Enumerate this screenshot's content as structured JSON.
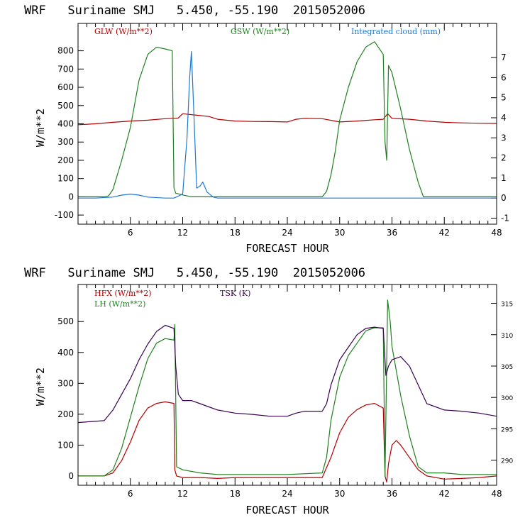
{
  "chart_data": [
    {
      "type": "line",
      "title": "WRF   Suriname SMJ   5.450, -55.190  2015052006",
      "xlabel": "FORECAST HOUR",
      "ylabel": "W/m**2",
      "xlim": [
        0,
        48
      ],
      "xticks": [
        6,
        12,
        18,
        24,
        30,
        36,
        42,
        48
      ],
      "ylim": [
        -150,
        950
      ],
      "yticks": [
        -100,
        0,
        100,
        200,
        300,
        400,
        500,
        600,
        700,
        800
      ],
      "y2lim": [
        -1.3,
        8.7
      ],
      "y2ticks": [
        -1,
        0,
        1,
        2,
        3,
        4,
        5,
        6,
        7
      ],
      "series": [
        {
          "name": "GLW (W/m**2)",
          "axis": "left",
          "color": "#b00000",
          "x": [
            0,
            2,
            4,
            6,
            8,
            10,
            11.5,
            12,
            14,
            15,
            16,
            18,
            20,
            22,
            24,
            25,
            26,
            28,
            30,
            32,
            34,
            35,
            35.5,
            36,
            38,
            40,
            42,
            44,
            46,
            48
          ],
          "y": [
            395,
            400,
            408,
            415,
            420,
            428,
            432,
            455,
            445,
            440,
            425,
            415,
            413,
            412,
            410,
            425,
            430,
            428,
            410,
            415,
            422,
            425,
            455,
            430,
            425,
            415,
            408,
            405,
            403,
            402
          ]
        },
        {
          "name": "GSW (W/m**2)",
          "axis": "left",
          "color": "#208020",
          "x": [
            0,
            3,
            3.5,
            4,
            5,
            6,
            7,
            8,
            9,
            10,
            10.8,
            11,
            11.2,
            12,
            12.5,
            13,
            14,
            15,
            16,
            17,
            20,
            24,
            28,
            28.5,
            29,
            29.5,
            30,
            31,
            32,
            33,
            34,
            35,
            35.2,
            35.4,
            35.6,
            36,
            37,
            38,
            39,
            39.6,
            40,
            44,
            48
          ],
          "y": [
            0,
            0,
            5,
            40,
            200,
            380,
            640,
            780,
            820,
            810,
            800,
            50,
            20,
            10,
            5,
            0,
            0,
            0,
            0,
            0,
            0,
            0,
            0,
            30,
            120,
            250,
            420,
            600,
            740,
            820,
            850,
            780,
            300,
            200,
            720,
            680,
            480,
            260,
            80,
            0,
            0,
            0,
            0
          ]
        },
        {
          "name": "Integrated cloud (mm)",
          "axis": "right",
          "color": "#1f78d1",
          "x": [
            0,
            2,
            4,
            5,
            6,
            7,
            8,
            10,
            11,
            12,
            12.5,
            12.8,
            13,
            13.3,
            13.6,
            14,
            14.3,
            14.8,
            15.5,
            16,
            20,
            24,
            30,
            36,
            42,
            48
          ],
          "y": [
            0,
            0,
            0.05,
            0.15,
            0.2,
            0.15,
            0.05,
            0,
            0,
            0.2,
            3.0,
            6.0,
            7.3,
            4.0,
            0.5,
            0.6,
            0.8,
            0.3,
            0.05,
            0,
            0,
            0,
            0,
            0,
            0,
            0
          ]
        }
      ]
    },
    {
      "type": "line",
      "title": "WRF   Suriname SMJ   5.450, -55.190  2015052006",
      "xlabel": "FORECAST HOUR",
      "ylabel": "W/m**2",
      "xlim": [
        0,
        48
      ],
      "xticks": [
        6,
        12,
        18,
        24,
        30,
        36,
        42,
        48
      ],
      "ylim": [
        -30,
        620
      ],
      "yticks": [
        0,
        100,
        200,
        300,
        400,
        500
      ],
      "y2lim": [
        286,
        318
      ],
      "y2ticks": [
        290,
        295,
        300,
        305,
        310,
        315
      ],
      "series": [
        {
          "name": "HFX (W/m**2)",
          "axis": "left",
          "color": "#b00000",
          "x": [
            0,
            3,
            4,
            5,
            6,
            7,
            8,
            9,
            10,
            11,
            11.1,
            11.3,
            12,
            14,
            16,
            18,
            20,
            24,
            28,
            29,
            30,
            31,
            32,
            33,
            34,
            35,
            35.2,
            35.4,
            35.6,
            36,
            36.5,
            37,
            38,
            39,
            40,
            42,
            44,
            46,
            48
          ],
          "y": [
            0,
            0,
            10,
            50,
            110,
            180,
            220,
            235,
            240,
            235,
            20,
            0,
            -5,
            -5,
            -8,
            -5,
            -5,
            -5,
            -5,
            60,
            140,
            190,
            215,
            230,
            235,
            220,
            0,
            -20,
            40,
            100,
            115,
            100,
            60,
            20,
            0,
            -10,
            -8,
            -5,
            0
          ]
        },
        {
          "name": "LH (W/m**2)",
          "axis": "left",
          "color": "#208020",
          "x": [
            0,
            3,
            4,
            5,
            6,
            7,
            8,
            9,
            10,
            11,
            11.1,
            11.3,
            12,
            14,
            16,
            18,
            20,
            24,
            28,
            28.5,
            29,
            30,
            31,
            32,
            33,
            34,
            35,
            35.2,
            35.5,
            35.8,
            36,
            37,
            38,
            39,
            40,
            42,
            44,
            46,
            48
          ],
          "y": [
            0,
            0,
            20,
            90,
            190,
            290,
            380,
            430,
            445,
            440,
            490,
            30,
            20,
            10,
            5,
            5,
            5,
            5,
            10,
            60,
            180,
            320,
            390,
            430,
            470,
            480,
            480,
            0,
            570,
            500,
            420,
            260,
            130,
            30,
            10,
            10,
            5,
            5,
            5
          ]
        },
        {
          "name": "TSK (K)",
          "axis": "right",
          "color": "#3a0050",
          "x": [
            0,
            3,
            4,
            5,
            6,
            7,
            8,
            9,
            10,
            11,
            11.2,
            11.5,
            12,
            13,
            14,
            15,
            16,
            18,
            20,
            22,
            24,
            25,
            26,
            28,
            28.5,
            29,
            30,
            31,
            32,
            33,
            34,
            35,
            35.3,
            35.6,
            36,
            37,
            38,
            39,
            40,
            42,
            44,
            46,
            48
          ],
          "y": [
            296.0,
            296.3,
            298.0,
            300.5,
            303.0,
            306.0,
            308.5,
            310.5,
            311.5,
            311.0,
            305.0,
            300.5,
            299.5,
            299.5,
            299.0,
            298.5,
            298.0,
            297.5,
            297.3,
            297.0,
            297.0,
            297.5,
            297.8,
            297.8,
            299.0,
            302.0,
            306.0,
            308.0,
            310.0,
            311.0,
            311.2,
            311.0,
            303.5,
            305.0,
            306.0,
            306.5,
            305.0,
            302.0,
            299.0,
            298.0,
            297.8,
            297.5,
            297.0
          ]
        }
      ]
    }
  ]
}
